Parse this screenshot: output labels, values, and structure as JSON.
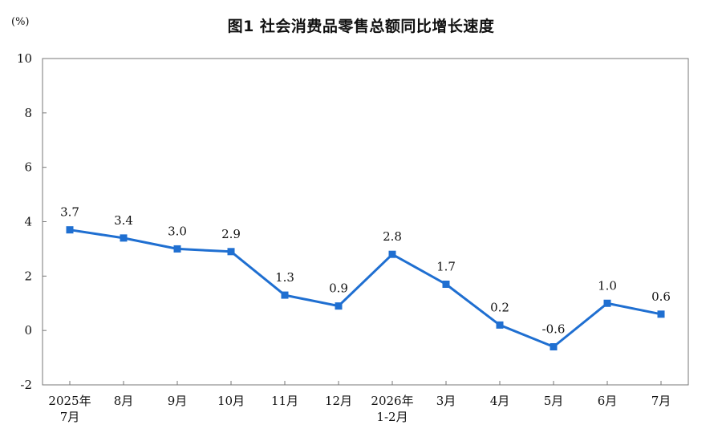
{
  "chart_data": {
    "type": "line",
    "title": "图1  社会消费品零售总额同比增长速度",
    "unit": "(%)",
    "categories": [
      [
        "2025年",
        "7月"
      ],
      [
        "8月"
      ],
      [
        "9月"
      ],
      [
        "10月"
      ],
      [
        "11月"
      ],
      [
        "12月"
      ],
      [
        "2026年",
        "1-2月"
      ],
      [
        "3月"
      ],
      [
        "4月"
      ],
      [
        "5月"
      ],
      [
        "6月"
      ],
      [
        "7月"
      ]
    ],
    "series": [
      {
        "values": [
          3.7,
          3.4,
          3.0,
          2.9,
          1.3,
          0.9,
          2.8,
          1.7,
          0.2,
          -0.6,
          1.0,
          0.6
        ],
        "labels": [
          "3.7",
          "3.4",
          "3.0",
          "2.9",
          "1.3",
          "0.9",
          "2.8",
          "1.7",
          "0.2",
          "-0.6",
          "1.0",
          "0.6"
        ]
      }
    ],
    "ylim": [
      -2,
      10
    ],
    "yticks": [
      -2,
      0,
      2,
      4,
      6,
      8,
      10
    ],
    "line_color": "#1f6fd1",
    "grid": false
  }
}
